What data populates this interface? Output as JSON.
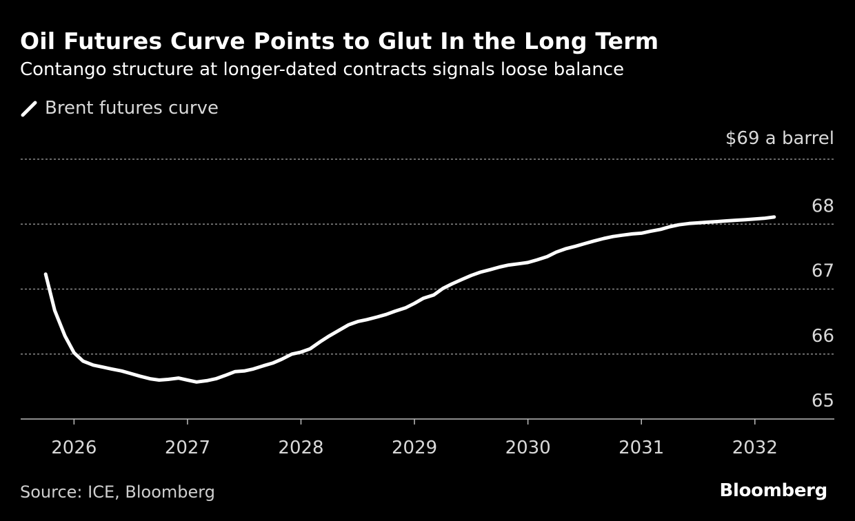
{
  "title": "Oil Futures Curve Points to Glut In the Long Term",
  "subtitle": "Contango structure at longer-dated contracts signals loose balance",
  "legend": {
    "label": "Brent futures curve"
  },
  "unit_label": "$69 a barrel",
  "source": "Source: ICE, Bloomberg",
  "brand": "Bloomberg",
  "colors": {
    "background": "#000000",
    "line": "#ffffff",
    "grid": "#8c8c8c",
    "text": "#d9d9d9"
  },
  "chart_data": {
    "type": "line",
    "title": "Oil Futures Curve Points to Glut In the Long Term",
    "subtitle": "Contango structure at longer-dated contracts signals loose balance",
    "xlabel": "",
    "ylabel": "$ a barrel",
    "xlim": [
      2025.53,
      2032.7
    ],
    "ylim": [
      65,
      69
    ],
    "y_ticks": [
      {
        "value": 65,
        "label": "65"
      },
      {
        "value": 66,
        "label": "66"
      },
      {
        "value": 67,
        "label": "67"
      },
      {
        "value": 68,
        "label": "68"
      },
      {
        "value": 69,
        "label": "$69 a barrel"
      }
    ],
    "x_ticks": [
      {
        "value": 2026,
        "label": "2026"
      },
      {
        "value": 2027,
        "label": "2027"
      },
      {
        "value": 2028,
        "label": "2028"
      },
      {
        "value": 2029,
        "label": "2029"
      },
      {
        "value": 2030,
        "label": "2030"
      },
      {
        "value": 2031,
        "label": "2031"
      },
      {
        "value": 2032,
        "label": "2032"
      }
    ],
    "legend_position": "top-left",
    "grid": true,
    "series": [
      {
        "name": "Brent futures curve",
        "x": [
          2025.75,
          2025.83,
          2025.92,
          2026.0,
          2026.08,
          2026.17,
          2026.25,
          2026.33,
          2026.42,
          2026.5,
          2026.58,
          2026.67,
          2026.75,
          2026.83,
          2026.92,
          2027.0,
          2027.08,
          2027.17,
          2027.25,
          2027.33,
          2027.42,
          2027.5,
          2027.58,
          2027.67,
          2027.75,
          2027.83,
          2027.92,
          2028.0,
          2028.08,
          2028.17,
          2028.25,
          2028.33,
          2028.42,
          2028.5,
          2028.58,
          2028.67,
          2028.75,
          2028.83,
          2028.92,
          2029.0,
          2029.08,
          2029.17,
          2029.25,
          2029.33,
          2029.42,
          2029.5,
          2029.58,
          2029.67,
          2029.75,
          2029.83,
          2029.92,
          2030.0,
          2030.08,
          2030.17,
          2030.25,
          2030.33,
          2030.42,
          2030.5,
          2030.58,
          2030.67,
          2030.75,
          2030.83,
          2030.92,
          2031.0,
          2031.08,
          2031.17,
          2031.25,
          2031.33,
          2031.42,
          2031.5,
          2031.58,
          2031.67,
          2031.75,
          2031.83,
          2031.92,
          2032.0,
          2032.08,
          2032.17
        ],
        "values": [
          67.23,
          66.67,
          66.28,
          66.02,
          65.89,
          65.83,
          65.8,
          65.77,
          65.74,
          65.7,
          65.66,
          65.62,
          65.6,
          65.61,
          65.63,
          65.6,
          65.57,
          65.59,
          65.62,
          65.67,
          65.73,
          65.74,
          65.77,
          65.82,
          65.86,
          65.92,
          66.0,
          66.03,
          66.08,
          66.19,
          66.28,
          66.36,
          66.45,
          66.5,
          66.53,
          66.57,
          66.61,
          66.66,
          66.71,
          66.78,
          66.86,
          66.91,
          67.01,
          67.08,
          67.15,
          67.21,
          67.26,
          67.3,
          67.34,
          67.37,
          67.39,
          67.41,
          67.45,
          67.5,
          67.57,
          67.62,
          67.66,
          67.7,
          67.74,
          67.78,
          67.81,
          67.83,
          67.85,
          67.86,
          67.89,
          67.92,
          67.96,
          67.99,
          68.01,
          68.02,
          68.03,
          68.04,
          68.05,
          68.06,
          68.07,
          68.08,
          68.09,
          68.11
        ]
      }
    ]
  }
}
